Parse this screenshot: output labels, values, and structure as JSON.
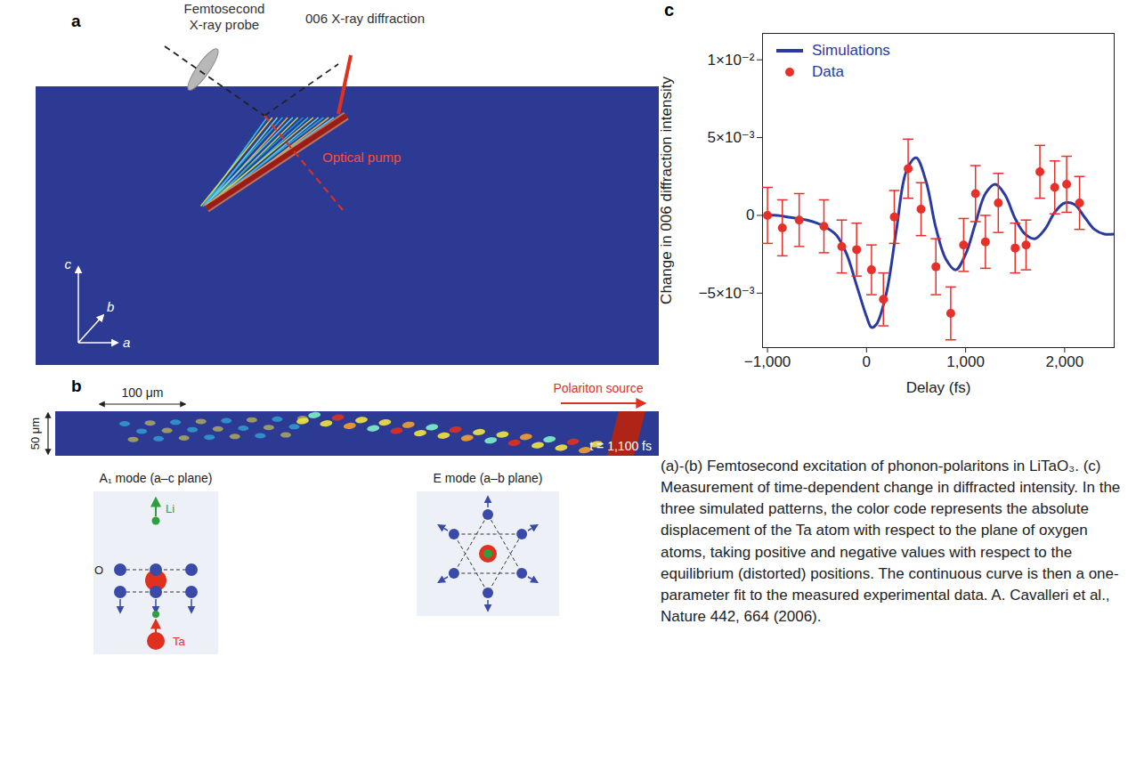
{
  "panel_a": {
    "letter": "a",
    "probe": "Femtosecond X-ray probe",
    "diffraction": "006 X-ray diffraction",
    "pump": "Optical pump",
    "axes": {
      "up": "c",
      "depth": "b",
      "right": "a"
    }
  },
  "panel_b": {
    "letter": "b",
    "scale_bar_x": "100 μm",
    "scale_bar_y": "50 μm",
    "source": "Polariton source",
    "time": "t = 1,100 fs",
    "modes": [
      {
        "title": "A₁ mode (a–c plane)",
        "atoms": {
          "top": "Li",
          "left": "O",
          "bottom": "Ta"
        }
      },
      {
        "title": "E mode (a–b plane)"
      }
    ]
  },
  "panel_c": {
    "letter": "c"
  },
  "chart_data": {
    "type": "line",
    "x_label": "Delay (fs)",
    "y_label": "Change in 006 diffraction intensity",
    "xlim": [
      -1050,
      2500
    ],
    "xticks": [
      {
        "value": -1000,
        "label": "−1,000"
      },
      0,
      {
        "value": 1000,
        "label": "1,000"
      },
      {
        "value": 2000,
        "label": "2,000"
      }
    ],
    "ylim": [
      -0.0085,
      0.0117
    ],
    "yticks": [
      {
        "value": 0.01,
        "label": "1×10⁻²"
      },
      {
        "value": 0.005,
        "label": "5×10⁻³"
      },
      0,
      {
        "value": -0.005,
        "label": "−5×10⁻³"
      }
    ],
    "grid": false,
    "legend": "top-left",
    "series": [
      {
        "name": "Simulations",
        "type": "line",
        "color": "#2a3aa0",
        "line_style": "solid",
        "x": [
          -1000,
          -900,
          -800,
          -700,
          -600,
          -500,
          -400,
          -300,
          -200,
          -100,
          0,
          50,
          100,
          200,
          300,
          400,
          500,
          600,
          700,
          800,
          900,
          1000,
          1100,
          1200,
          1300,
          1400,
          1500,
          1600,
          1700,
          1800,
          1900,
          2000,
          2100,
          2200,
          2300,
          2400,
          2500
        ],
        "values": [
          0,
          0,
          -0.0001,
          -0.0002,
          -0.0003,
          -0.0005,
          -0.0008,
          -0.0013,
          -0.0025,
          -0.0045,
          -0.0065,
          -0.0072,
          -0.007,
          -0.005,
          -0.001,
          0.0028,
          0.0037,
          0.0022,
          -0.0008,
          -0.0028,
          -0.0035,
          -0.0025,
          -0.0005,
          0.0014,
          0.002,
          0.0013,
          -0.0002,
          -0.0012,
          -0.0015,
          -0.0009,
          0.0002,
          0.0008,
          0.0007,
          -0.0001,
          -0.0009,
          -0.0012,
          -0.0012
        ]
      },
      {
        "name": "Data",
        "type": "scatter",
        "color": "#e8302a",
        "marker": "circle",
        "x": [
          -1000,
          -850,
          -680,
          -430,
          -250,
          -100,
          50,
          170,
          280,
          420,
          550,
          700,
          850,
          980,
          1100,
          1200,
          1330,
          1500,
          1610,
          1750,
          1900,
          2020,
          2150
        ],
        "values": [
          0,
          -0.0008,
          -0.0003,
          -0.0007,
          -0.002,
          -0.0022,
          -0.0035,
          -0.0054,
          -0.0001,
          0.003,
          0.0004,
          -0.0033,
          -0.0063,
          -0.0019,
          0.0014,
          -0.0017,
          0.0008,
          -0.0021,
          -0.0019,
          0.0028,
          0.0018,
          0.002,
          0.0008
        ],
        "errors": [
          0.0018,
          0.0018,
          0.0017,
          0.0017,
          0.0017,
          0.0017,
          0.0016,
          0.0017,
          0.0017,
          0.0019,
          0.0017,
          0.0018,
          0.0017,
          0.0017,
          0.0018,
          0.0017,
          0.0019,
          0.0016,
          0.0016,
          0.0017,
          0.0017,
          0.0018,
          0.0017
        ]
      }
    ]
  },
  "caption": "(a)-(b) Femtosecond excitation of phonon-polaritons in LiTaO₃. (c) Measurement of time-dependent change in diffracted intensity. In the three simulated patterns, the color code represents the absolute displacement of the Ta atom with respect to the plane of oxygen atoms, taking positive and negative values with respect to the equilibrium (distorted) positions. The continuous curve is then a one-parameter fit to the measured experimental data. A. Cavalleri et al., Nature 442, 664 (2006)."
}
